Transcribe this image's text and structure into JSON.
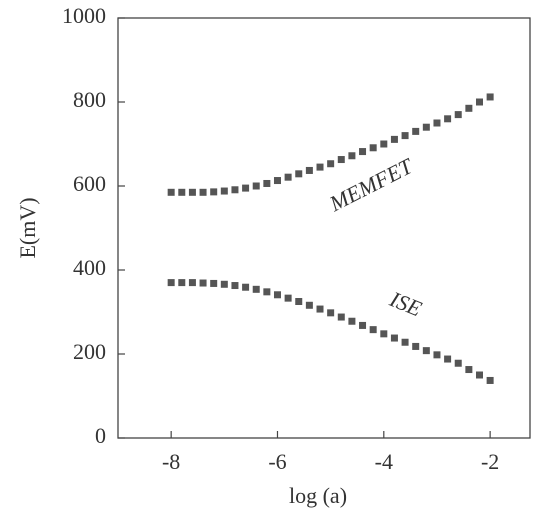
{
  "chart_data": {
    "type": "scatter",
    "x_label": "log (a)",
    "y_label": "E(mV)",
    "x": [
      -8,
      -7.8,
      -7.6,
      -7.4,
      -7.2,
      -7,
      -6.8,
      -6.6,
      -6.4,
      -6.2,
      -6,
      -5.8,
      -5.6,
      -5.4,
      -5.2,
      -5,
      -4.8,
      -4.6,
      -4.4,
      -4.2,
      -4,
      -3.8,
      -3.6,
      -3.4,
      -3.2,
      -3,
      -2.8,
      -2.6,
      -2.4,
      -2.2,
      -2
    ],
    "series": [
      {
        "name": "MEMFET",
        "color": "#555555",
        "values": [
          585,
          585,
          585,
          585,
          586,
          588,
          591,
          595,
          600,
          606,
          613,
          621,
          629,
          637,
          645,
          653,
          663,
          672,
          682,
          691,
          700,
          711,
          720,
          730,
          740,
          750,
          760,
          770,
          785,
          800,
          812
        ]
      },
      {
        "name": "ISE",
        "color": "#555555",
        "values": [
          370,
          370,
          370,
          369,
          368,
          366,
          363,
          359,
          354,
          348,
          341,
          333,
          325,
          316,
          307,
          298,
          288,
          278,
          268,
          258,
          248,
          238,
          228,
          218,
          208,
          198,
          188,
          178,
          163,
          150,
          137
        ]
      }
    ],
    "xlim": [
      -9,
      -1.25
    ],
    "ylim": [
      0,
      1000
    ],
    "xticks": [
      -8,
      -6,
      -4,
      -2
    ],
    "yticks": [
      0,
      200,
      400,
      600,
      800,
      1000
    ]
  }
}
